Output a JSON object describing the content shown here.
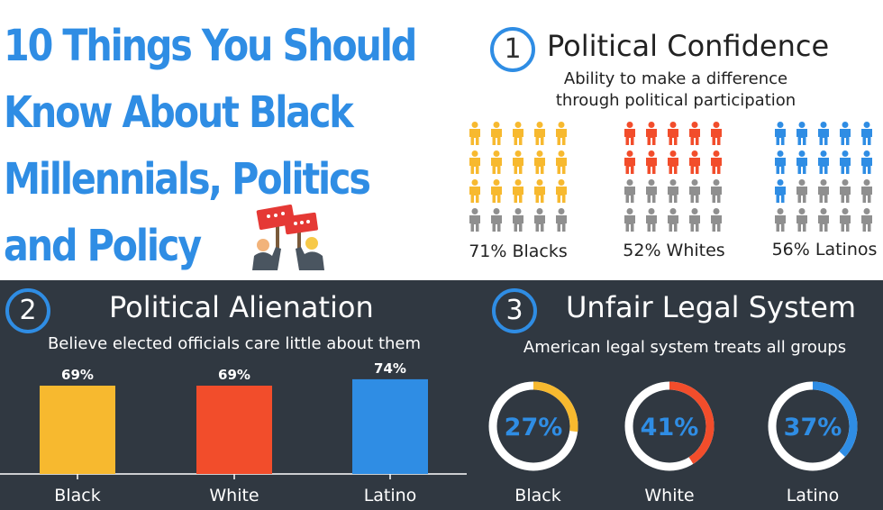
{
  "title_lines": [
    "10 Things You Should",
    "Know About Black",
    "Millennials, Politics",
    "and Policy"
  ],
  "colors": {
    "accent": "#2f8de4",
    "black": "#f7b92f",
    "white": "#f24d2b",
    "latino": "#2f8de4",
    "gray": "#8f8f8f",
    "dark_bg": "#303841"
  },
  "icons": [
    "protest-signs-icon",
    "person-icon"
  ],
  "section1": {
    "number": "1",
    "title": "Political Confidence",
    "subtitle_lines": [
      "Ability to make a difference",
      "through political participation"
    ]
  },
  "section2": {
    "number": "2",
    "title": "Political Alienation",
    "subtitle": "Believe elected officials care little about them"
  },
  "section3": {
    "number": "3",
    "title": "Unfair Legal System",
    "subtitle": "American legal system treats all groups"
  },
  "chart_data": [
    {
      "type": "pictogram",
      "categories": [
        "Blacks",
        "Whites",
        "Latinos"
      ],
      "values": [
        71,
        52,
        56
      ],
      "labels": [
        "71% Blacks",
        "52% Whites",
        "56% Latinos"
      ],
      "icons_per_group": 20,
      "filled_icons": [
        15,
        10,
        11
      ],
      "unit": "%"
    },
    {
      "type": "bar",
      "categories": [
        "Black",
        "White",
        "Latino"
      ],
      "values": [
        69,
        69,
        74
      ],
      "data_labels": [
        "69%",
        "69%",
        "74%"
      ],
      "unit": "%",
      "ylim": [
        0,
        100
      ]
    },
    {
      "type": "pie",
      "style": "donut",
      "categories": [
        "Black",
        "White",
        "Latino"
      ],
      "values": [
        27,
        41,
        37
      ],
      "data_labels": [
        "27%",
        "41%",
        "37%"
      ],
      "unit": "%"
    }
  ]
}
